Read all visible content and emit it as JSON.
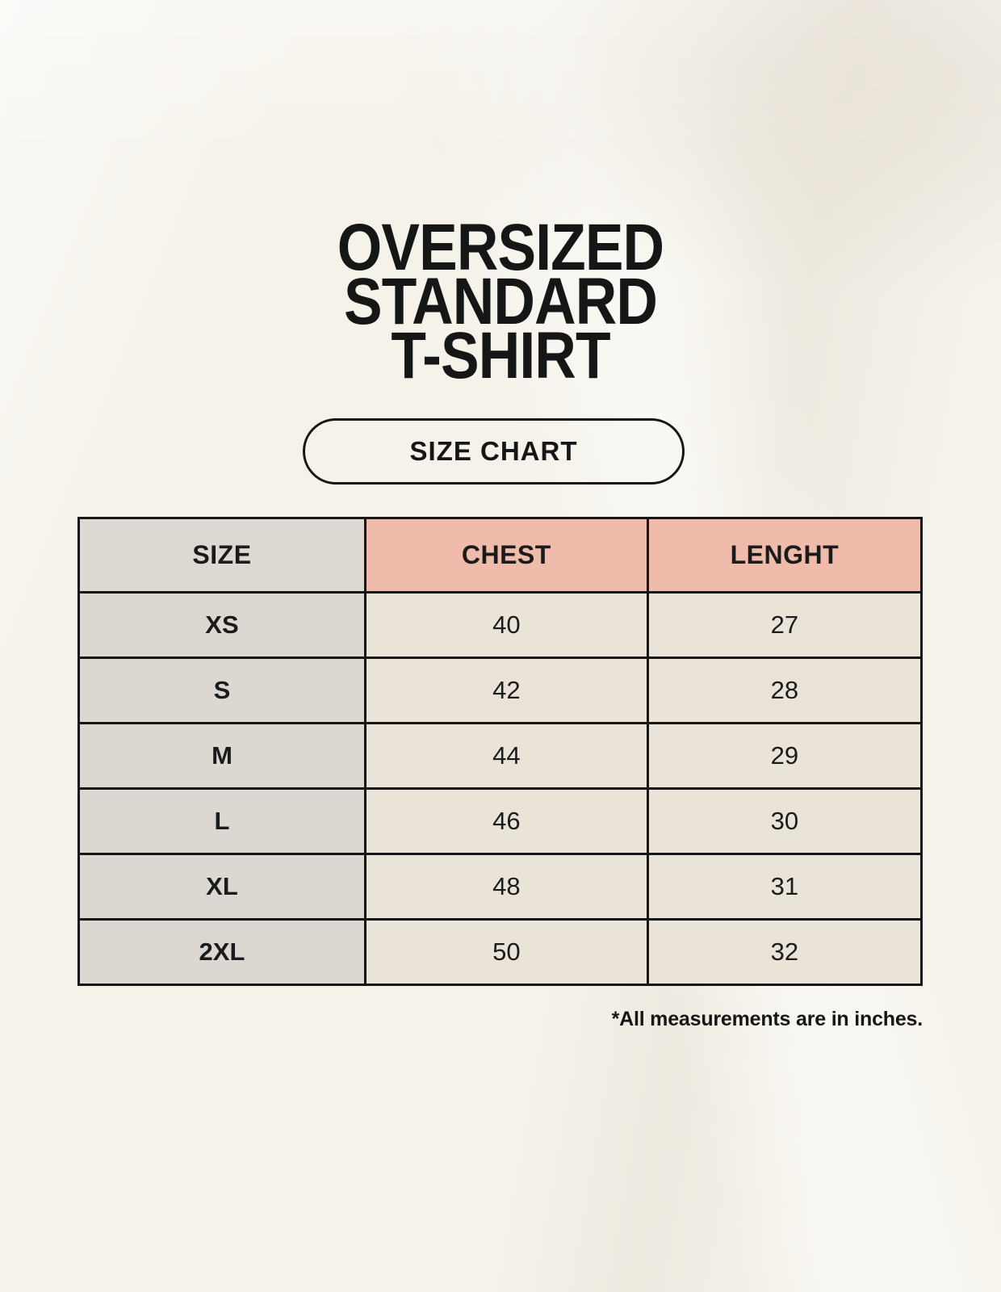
{
  "title": {
    "lines": [
      "OVERSIZED",
      "STANDARD",
      "T-SHIRT"
    ]
  },
  "size_chart_button": {
    "label": "SIZE CHART"
  },
  "table": {
    "headers": [
      "SIZE",
      "CHEST",
      "LENGHT"
    ],
    "rows": [
      {
        "size": "XS",
        "chest": "40",
        "length": "27"
      },
      {
        "size": "S",
        "chest": "42",
        "length": "28"
      },
      {
        "size": "M",
        "chest": "44",
        "length": "29"
      },
      {
        "size": "L",
        "chest": "46",
        "length": "30"
      },
      {
        "size": "XL",
        "chest": "48",
        "length": "31"
      },
      {
        "size": "2XL",
        "chest": "50",
        "length": "32"
      }
    ]
  },
  "footnote": "*All measurements are in inches.",
  "colors": {
    "background": "#f5f2ea",
    "ink": "#161616",
    "header_size_bg": "#ded8d3",
    "header_accent_bg": "#efbbab",
    "size_column_bg": "#ddd7d2",
    "value_cell_bg": "#eae3d8"
  },
  "chart_data": {
    "type": "table",
    "title": "OVERSIZED STANDARD T-SHIRT — SIZE CHART",
    "columns": [
      "SIZE",
      "CHEST",
      "LENGHT"
    ],
    "rows": [
      [
        "XS",
        40,
        27
      ],
      [
        "S",
        42,
        28
      ],
      [
        "M",
        44,
        29
      ],
      [
        "L",
        46,
        30
      ],
      [
        "XL",
        48,
        31
      ],
      [
        "2XL",
        50,
        32
      ]
    ],
    "note": "*All measurements are in inches.",
    "units": "inches"
  }
}
